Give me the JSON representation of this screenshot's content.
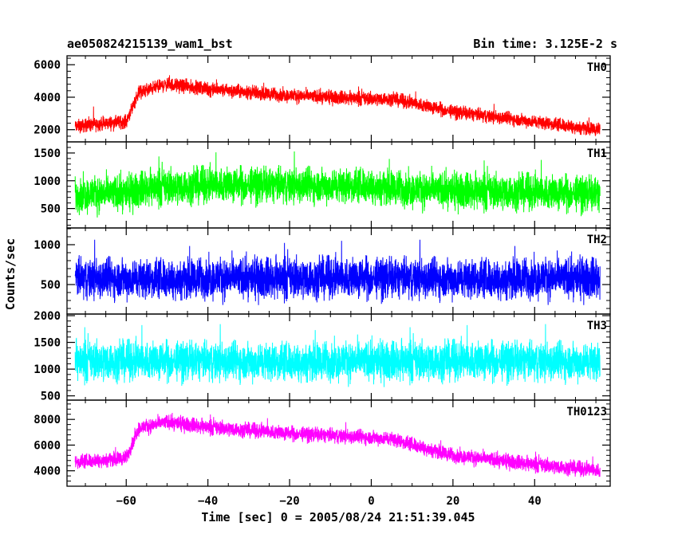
{
  "chart_data": {
    "type": "line",
    "title": "ae050824215139_wam1_bst",
    "subtitle": "Bin time: 3.125E-2 s",
    "xlabel": "Time [sec] 0 = 2005/08/24 21:51:39.045",
    "ylabel": "Counts/sec",
    "xlim": [
      -74.5,
      58.5
    ],
    "x_ticks": [
      -60,
      -40,
      -20,
      0,
      20,
      40
    ],
    "x_tick_labels": [
      "−60",
      "−40",
      "−20",
      "0",
      "20",
      "40"
    ],
    "x_data_range": [
      -72.5,
      56.0
    ],
    "grid": false,
    "panels": [
      {
        "name": "TH0",
        "color": "#ff0000",
        "ylim": [
          1250,
          6550
        ],
        "y_ticks": [
          2000,
          4000,
          6000
        ],
        "profile": [
          [
            -72.5,
            2200
          ],
          [
            -60,
            2500
          ],
          [
            -57,
            4300
          ],
          [
            -50,
            4800
          ],
          [
            -40,
            4500
          ],
          [
            -20,
            4100
          ],
          [
            0,
            3900
          ],
          [
            5,
            3900
          ],
          [
            20,
            3100
          ],
          [
            40,
            2500
          ],
          [
            56,
            2000
          ]
        ],
        "noise": 380
      },
      {
        "name": "TH1",
        "color": "#00ff00",
        "ylim": [
          150,
          1700
        ],
        "y_ticks": [
          500,
          1000,
          1500
        ],
        "profile": [
          [
            -72.5,
            750
          ],
          [
            -60,
            780
          ],
          [
            -55,
            870
          ],
          [
            -40,
            920
          ],
          [
            0,
            920
          ],
          [
            10,
            840
          ],
          [
            56,
            760
          ]
        ],
        "noise": 290
      },
      {
        "name": "TH2",
        "color": "#0000ff",
        "ylim": [
          130,
          1210
        ],
        "y_ticks": [
          500,
          1000
        ],
        "profile": [
          [
            -72.5,
            580
          ],
          [
            56,
            580
          ]
        ],
        "noise": 230
      },
      {
        "name": "TH3",
        "color": "#00ffff",
        "ylim": [
          420,
          2030
        ],
        "y_ticks": [
          500,
          1000,
          1500,
          2000
        ],
        "profile": [
          [
            -72.5,
            1150
          ],
          [
            56,
            1150
          ]
        ],
        "noise": 330
      },
      {
        "name": "TH0123",
        "color": "#ff00ff",
        "ylim": [
          2800,
          9500
        ],
        "y_ticks": [
          4000,
          6000,
          8000
        ],
        "profile": [
          [
            -72.5,
            4700
          ],
          [
            -60,
            5000
          ],
          [
            -57,
            7300
          ],
          [
            -50,
            7800
          ],
          [
            -40,
            7400
          ],
          [
            -20,
            6900
          ],
          [
            0,
            6600
          ],
          [
            5,
            6500
          ],
          [
            20,
            5200
          ],
          [
            40,
            4500
          ],
          [
            56,
            4000
          ]
        ],
        "noise": 520
      }
    ]
  }
}
